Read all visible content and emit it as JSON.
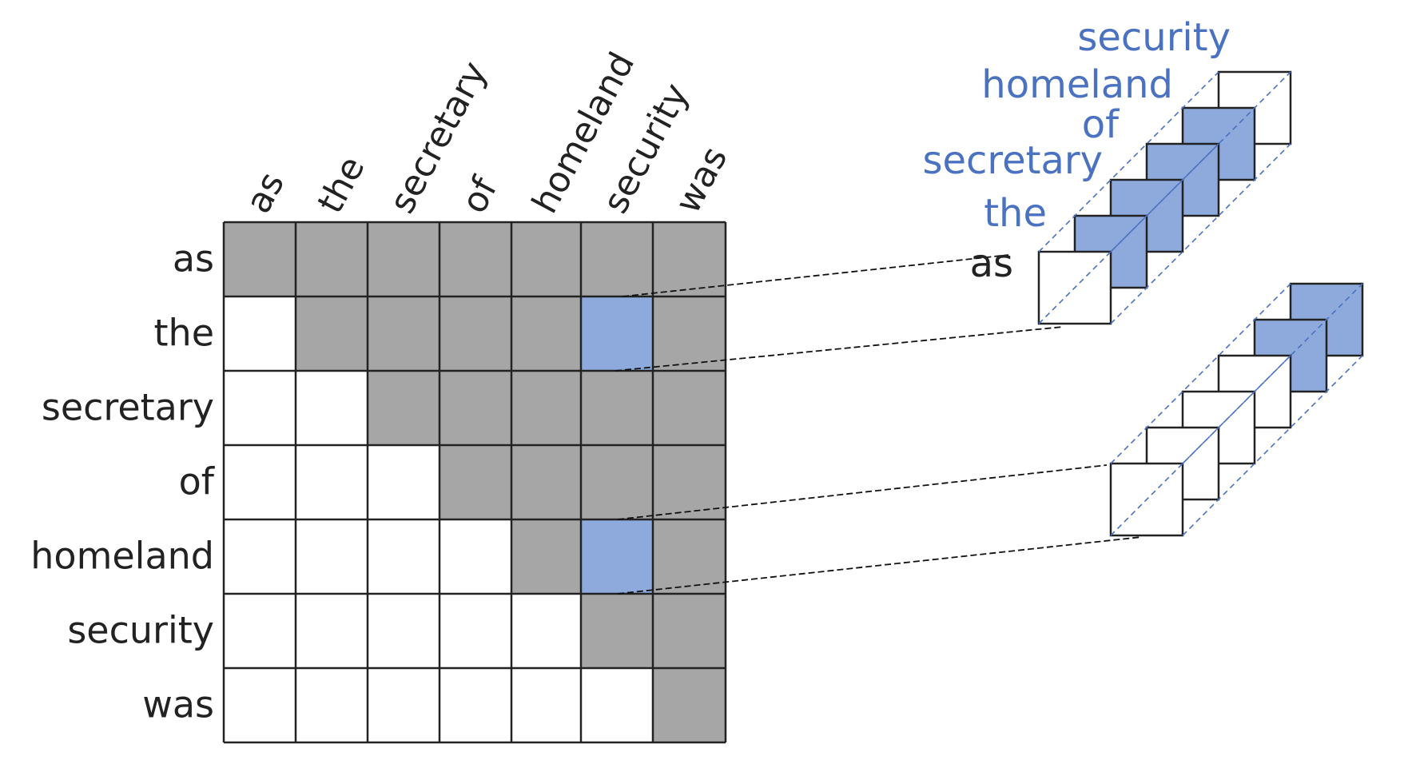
{
  "matrix": {
    "tokens": [
      "as",
      "the",
      "secretary",
      "of",
      "homeland",
      "security",
      "was"
    ],
    "cells": [
      [
        "gray",
        "gray",
        "gray",
        "gray",
        "gray",
        "gray",
        "gray"
      ],
      [
        "white",
        "gray",
        "gray",
        "gray",
        "gray",
        "blue",
        "gray"
      ],
      [
        "white",
        "white",
        "gray",
        "gray",
        "gray",
        "gray",
        "gray"
      ],
      [
        "white",
        "white",
        "white",
        "gray",
        "gray",
        "gray",
        "gray"
      ],
      [
        "white",
        "white",
        "white",
        "white",
        "gray",
        "blue",
        "gray"
      ],
      [
        "white",
        "white",
        "white",
        "white",
        "white",
        "gray",
        "gray"
      ],
      [
        "white",
        "white",
        "white",
        "white",
        "white",
        "white",
        "gray"
      ]
    ]
  },
  "stack_labels": [
    "as",
    "the",
    "secretary",
    "of",
    "homeland",
    "security"
  ],
  "stack_top_filled": [
    false,
    true,
    true,
    true,
    true,
    false
  ],
  "stack_bottom_filled": [
    false,
    false,
    false,
    false,
    true,
    true
  ],
  "colors": {
    "gray": "#a6a6a6",
    "blue": "#8eaadc",
    "white": "#ffffff",
    "grid": "#222222",
    "dash_blue": "#4a72c0",
    "label_blue": "#4a72c0"
  }
}
